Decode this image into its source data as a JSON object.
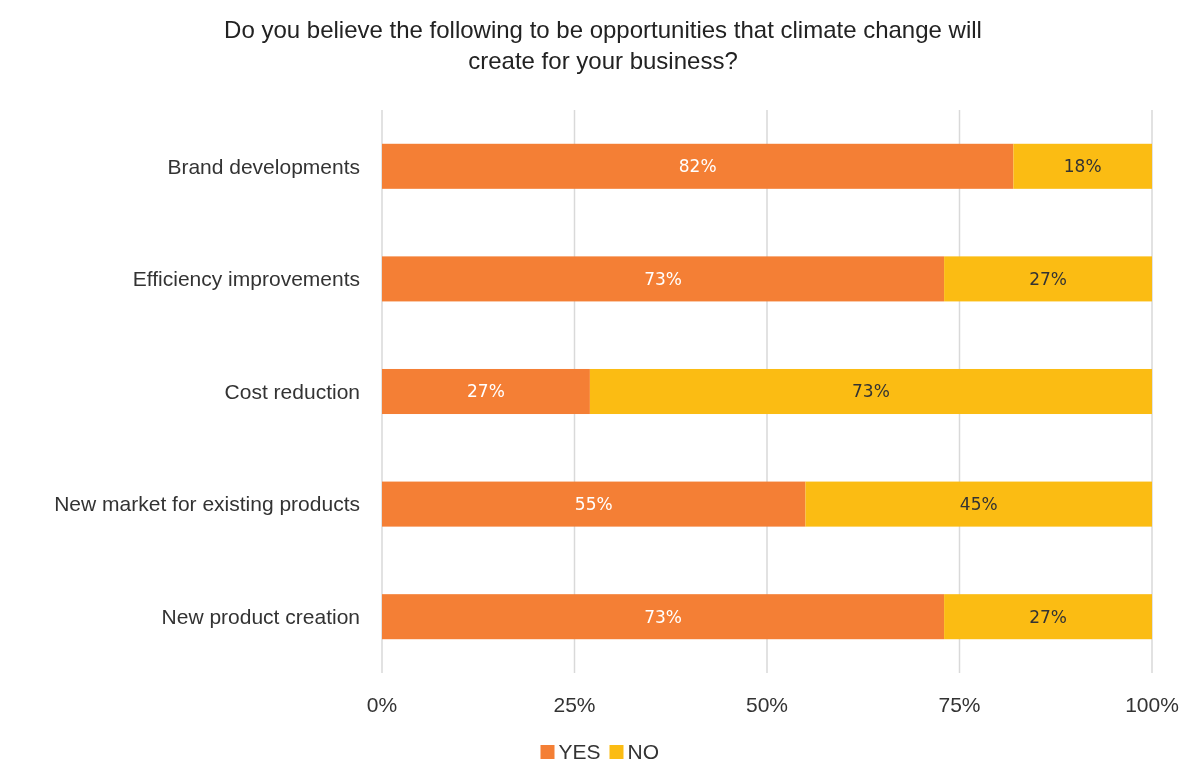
{
  "chart_data": {
    "type": "bar",
    "orientation": "horizontal",
    "stacked": true,
    "title": "Do you believe the following to be opportunities that climate change will create for your business?",
    "categories": [
      "Brand developments",
      "Efficiency improvements",
      "Cost reduction",
      "New market for existing products",
      "New product creation"
    ],
    "series": [
      {
        "name": "YES",
        "color": "#f47f35",
        "values": [
          82,
          73,
          27,
          55,
          73
        ],
        "value_labels": [
          "82%",
          "73%",
          "27%",
          "55%",
          "73%"
        ]
      },
      {
        "name": "NO",
        "color": "#fbbc13",
        "values": [
          18,
          27,
          73,
          45,
          27
        ],
        "value_labels": [
          "18%",
          "27%",
          "73%",
          "45%",
          "27%"
        ]
      }
    ],
    "xlim": [
      0,
      100
    ],
    "xticks": [
      {
        "value": 0,
        "label": "0%"
      },
      {
        "value": 25,
        "label": "25%"
      },
      {
        "value": 50,
        "label": "50%"
      },
      {
        "value": 75,
        "label": "75%"
      },
      {
        "value": 100,
        "label": "100%"
      }
    ],
    "grid": "x",
    "legend": "bottom"
  }
}
